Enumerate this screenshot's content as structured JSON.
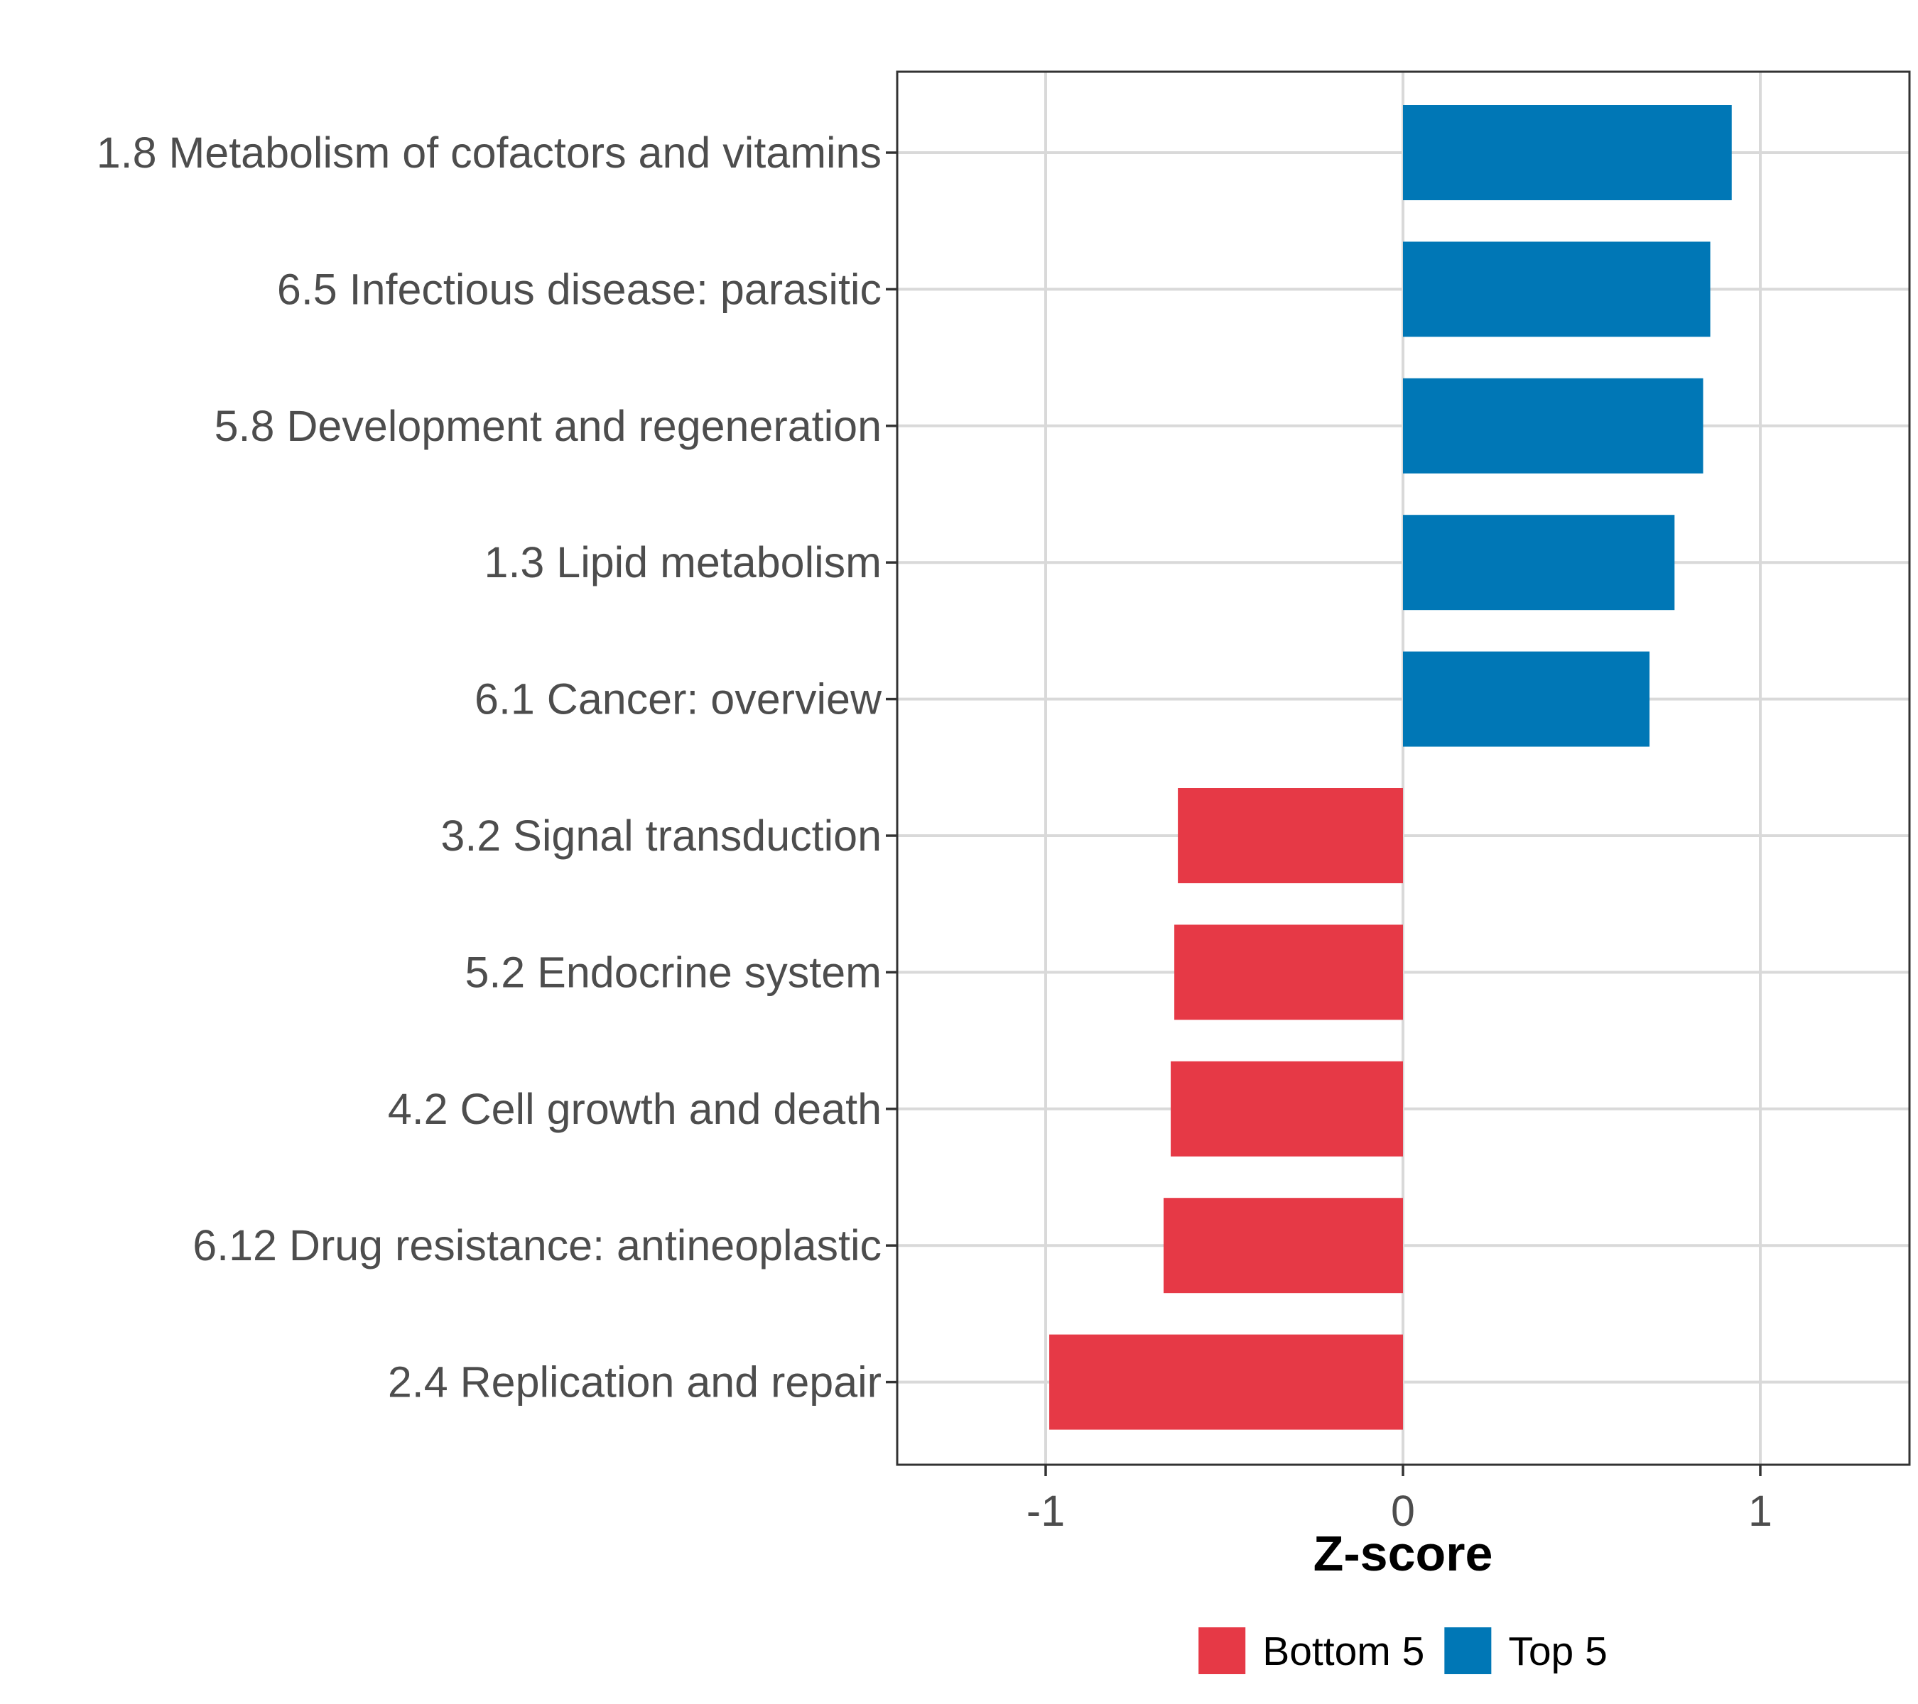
{
  "chart_data": {
    "type": "bar",
    "orientation": "horizontal",
    "title": "",
    "xlabel": "Z-score",
    "ylabel": "",
    "xlim": [
      -1.42,
      1.42
    ],
    "xticks": [
      -1,
      0,
      1
    ],
    "xtick_labels": [
      "-1",
      "0",
      "1"
    ],
    "grid": true,
    "legend_position": "bottom",
    "categories": [
      "1.8 Metabolism of cofactors and vitamins",
      "6.5 Infectious disease: parasitic",
      "5.8 Development and regeneration",
      "1.3 Lipid metabolism",
      "6.1 Cancer: overview",
      "3.2 Signal transduction",
      "5.2 Endocrine system",
      "4.2 Cell growth and death",
      "6.12 Drug resistance: antineoplastic",
      "2.4 Replication and repair"
    ],
    "values": [
      0.92,
      0.86,
      0.84,
      0.76,
      0.69,
      -0.63,
      -0.64,
      -0.65,
      -0.67,
      -0.99
    ],
    "groups": [
      "Top 5",
      "Top 5",
      "Top 5",
      "Top 5",
      "Top 5",
      "Bottom 5",
      "Bottom 5",
      "Bottom 5",
      "Bottom 5",
      "Bottom 5"
    ],
    "legend": [
      {
        "name": "Bottom 5",
        "color": "#e63946"
      },
      {
        "name": "Top 5",
        "color": "#0077b6"
      }
    ]
  }
}
